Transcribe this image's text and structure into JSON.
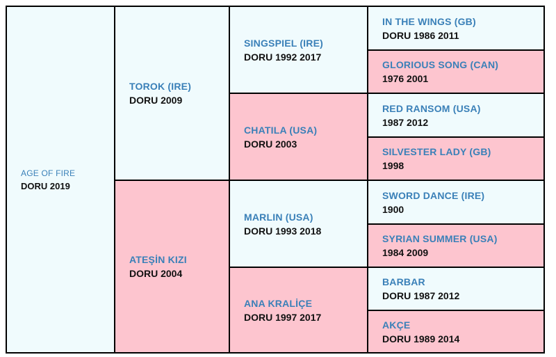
{
  "pedigree": {
    "root": {
      "name": "AGE OF FIRE",
      "info": "DORU 2019"
    },
    "gen1": [
      {
        "name": "TOROK (IRE)",
        "info": "DORU 2009"
      },
      {
        "name": "ATEŞİN KIZI",
        "info": "DORU 2004"
      }
    ],
    "gen2": [
      {
        "name": "SINGSPIEL (IRE)",
        "info": "DORU 1992 2017"
      },
      {
        "name": "CHATILA (USA)",
        "info": "DORU 2003"
      },
      {
        "name": "MARLIN (USA)",
        "info": "DORU 1993 2018"
      },
      {
        "name": "ANA KRALİÇE",
        "info": "DORU 1997 2017"
      }
    ],
    "gen3": [
      {
        "name": "IN THE WINGS (GB)",
        "info": "DORU 1986 2011"
      },
      {
        "name": "GLORIOUS SONG (CAN)",
        "info": "1976 2001"
      },
      {
        "name": "RED RANSOM (USA)",
        "info": "1987 2012"
      },
      {
        "name": "SILVESTER LADY (GB)",
        "info": "1998"
      },
      {
        "name": "SWORD DANCE (IRE)",
        "info": "1900"
      },
      {
        "name": "SYRIAN SUMMER (USA)",
        "info": "1984 2009"
      },
      {
        "name": "BARBAR",
        "info": "DORU 1987 2012"
      },
      {
        "name": "AKÇE",
        "info": "DORU 1989 2014"
      }
    ]
  },
  "colors": {
    "male_bg": "#f0fbfd",
    "female_bg": "#fdc5cf",
    "name_text": "#3a80b8",
    "info_text": "#111111",
    "border": "#000000"
  }
}
